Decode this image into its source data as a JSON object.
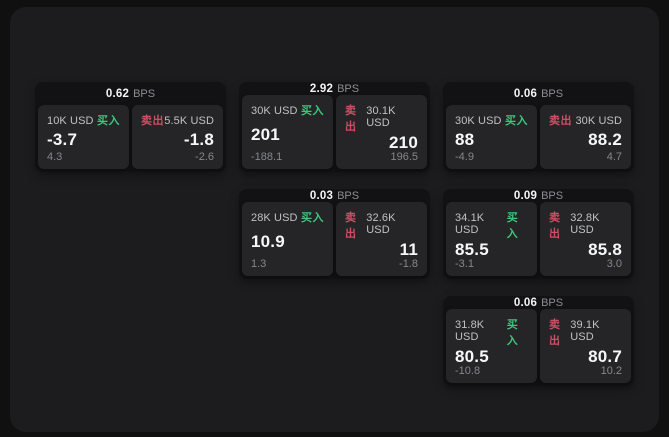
{
  "labels": {
    "buy": "买入",
    "sell": "卖出",
    "bps_unit": "BPS"
  },
  "colors": {
    "buy_green": "#3ec57c",
    "sell_red": "#cc4f63",
    "window_bg": "#1c1c1e",
    "card_bg": "#121214",
    "panel_bg": "#252527"
  },
  "cards": [
    {
      "spread_bps": "0.62",
      "grid": {
        "row": 1,
        "col": 1
      },
      "bid": {
        "amount": "10K USD",
        "price": "-3.7",
        "delta": "4.3"
      },
      "ask": {
        "amount": "5.5K USD",
        "price": "-1.8",
        "delta": "-2.6"
      }
    },
    {
      "spread_bps": "2.92",
      "grid": {
        "row": 1,
        "col": 2
      },
      "bid": {
        "amount": "30K USD",
        "price": "201",
        "delta": "-188.1"
      },
      "ask": {
        "amount": "30.1K USD",
        "price": "210",
        "delta": "196.5"
      }
    },
    {
      "spread_bps": "0.06",
      "grid": {
        "row": 1,
        "col": 3
      },
      "bid": {
        "amount": "30K USD",
        "price": "88",
        "delta": "-4.9"
      },
      "ask": {
        "amount": "30K USD",
        "price": "88.2",
        "delta": "4.7"
      }
    },
    {
      "spread_bps": "0.03",
      "grid": {
        "row": 2,
        "col": 2
      },
      "bid": {
        "amount": "28K USD",
        "price": "10.9",
        "delta": "1.3"
      },
      "ask": {
        "amount": "32.6K USD",
        "price": "11",
        "delta": "-1.8"
      }
    },
    {
      "spread_bps": "0.09",
      "grid": {
        "row": 2,
        "col": 3
      },
      "bid": {
        "amount": "34.1K USD",
        "price": "85.5",
        "delta": "-3.1"
      },
      "ask": {
        "amount": "32.8K USD",
        "price": "85.8",
        "delta": "3.0"
      }
    },
    {
      "spread_bps": "0.06",
      "grid": {
        "row": 3,
        "col": 3
      },
      "bid": {
        "amount": "31.8K USD",
        "price": "80.5",
        "delta": "-10.8"
      },
      "ask": {
        "amount": "39.1K USD",
        "price": "80.7",
        "delta": "10.2"
      }
    }
  ]
}
